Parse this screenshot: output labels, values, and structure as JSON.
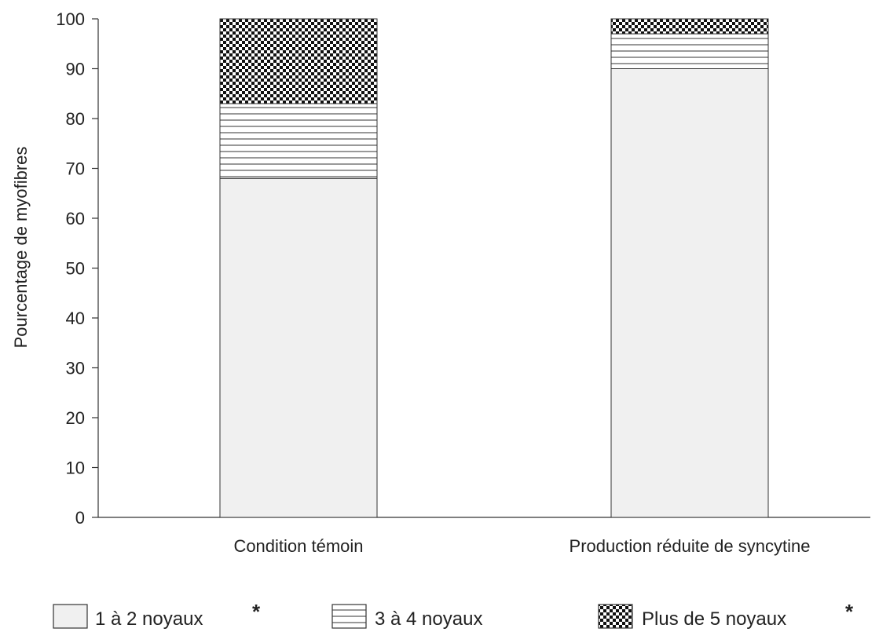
{
  "chart_data": {
    "type": "bar",
    "stacked": true,
    "title": "",
    "xlabel": "",
    "ylabel": "Pourcentage de myofibres",
    "ylim": [
      0,
      100
    ],
    "yticks": [
      0,
      10,
      20,
      30,
      40,
      50,
      60,
      70,
      80,
      90,
      100
    ],
    "grid": false,
    "categories": [
      "Condition témoin",
      "Production réduite de syncytine"
    ],
    "series": [
      {
        "name": "1 à 2 noyaux",
        "marker": "*",
        "pattern": "solid-light",
        "values": [
          68,
          90
        ]
      },
      {
        "name": "3 à 4 noyaux",
        "marker": "",
        "pattern": "horizontal-lines",
        "values": [
          15,
          7
        ]
      },
      {
        "name": "Plus de 5 noyaux",
        "marker": "*",
        "pattern": "checkerboard",
        "values": [
          17,
          3
        ]
      }
    ],
    "legend_position": "bottom",
    "colors": {
      "fill_light": "#f0f0f0",
      "stroke": "#333333",
      "pattern_dark": "#111111"
    }
  }
}
